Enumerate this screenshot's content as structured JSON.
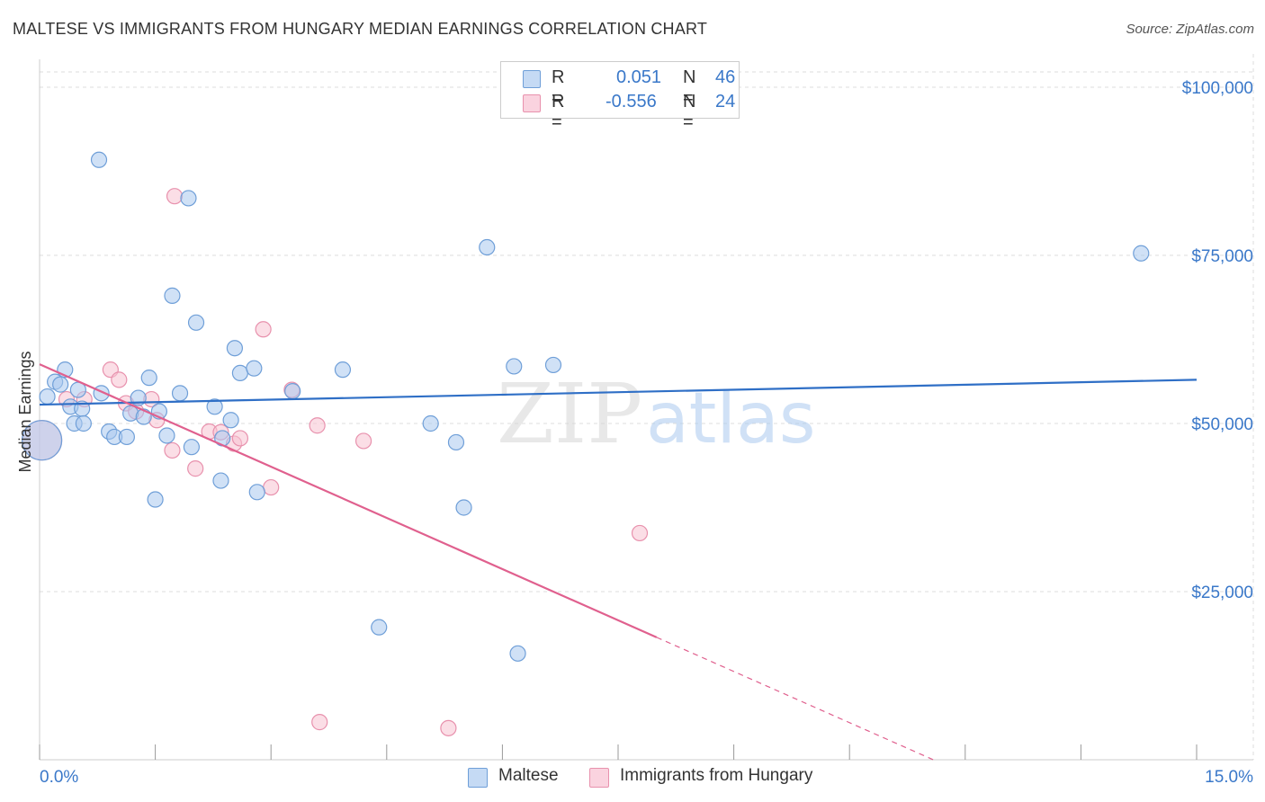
{
  "title": "MALTESE VS IMMIGRANTS FROM HUNGARY MEDIAN EARNINGS CORRELATION CHART",
  "source": "Source: ZipAtlas.com",
  "watermark": {
    "zip": "ZIP",
    "atlas": "atlas"
  },
  "legend_top": {
    "r_label": "R =",
    "n_label": "N =",
    "rows": [
      {
        "series": "Maltese",
        "r": "0.051",
        "n": "46"
      },
      {
        "series": "Immigrants from Hungary",
        "r": "-0.556",
        "n": "24"
      }
    ]
  },
  "legend_bottom": [
    "Maltese",
    "Immigrants from Hungary"
  ],
  "colors": {
    "blue_fill": "#a9c9ef",
    "blue_stroke": "#6f9fd8",
    "blue_line": "#2f6fc6",
    "pink_fill": "#f7c3d2",
    "pink_stroke": "#e891ad",
    "pink_line": "#e0608e",
    "axis_text": "#3a78c9",
    "grid": "#dddddd"
  },
  "chart_data": {
    "type": "scatter",
    "title": "MALTESE VS IMMIGRANTS FROM HUNGARY MEDIAN EARNINGS CORRELATION CHART",
    "xlabel": "",
    "ylabel": "Median Earnings",
    "xlim": [
      0,
      15
    ],
    "ylim": [
      0,
      105000
    ],
    "x_tick_labels": [
      "0.0%",
      "15.0%"
    ],
    "y_ticks": [
      {
        "value": 25000,
        "label": "$25,000"
      },
      {
        "value": 50000,
        "label": "$50,000"
      },
      {
        "value": 75000,
        "label": "$75,000"
      },
      {
        "value": 100000,
        "label": "$100,000"
      }
    ],
    "grid": true,
    "legend_position": "top-center",
    "series": [
      {
        "name": "Maltese",
        "r": 0.051,
        "n": 46,
        "trend": {
          "x": [
            0,
            15
          ],
          "y": [
            52800,
            56500
          ],
          "style": "solid"
        },
        "points": [
          [
            0.03,
            47500,
            "large"
          ],
          [
            0.1,
            54000
          ],
          [
            0.2,
            56200
          ],
          [
            0.27,
            55800
          ],
          [
            0.33,
            58000
          ],
          [
            0.4,
            52500
          ],
          [
            0.45,
            50000
          ],
          [
            0.5,
            55000
          ],
          [
            0.55,
            52200
          ],
          [
            0.57,
            50000
          ],
          [
            0.77,
            89200
          ],
          [
            0.8,
            54500
          ],
          [
            0.9,
            48800
          ],
          [
            0.97,
            48000
          ],
          [
            1.13,
            48000
          ],
          [
            1.18,
            51500
          ],
          [
            1.28,
            53800
          ],
          [
            1.35,
            51000
          ],
          [
            1.42,
            56800
          ],
          [
            1.5,
            38700
          ],
          [
            1.55,
            51800
          ],
          [
            1.65,
            48200
          ],
          [
            1.72,
            69000
          ],
          [
            1.82,
            54500
          ],
          [
            1.93,
            83500
          ],
          [
            1.97,
            46500
          ],
          [
            2.03,
            65000
          ],
          [
            2.27,
            52500
          ],
          [
            2.35,
            41500
          ],
          [
            2.37,
            47800
          ],
          [
            2.48,
            50500
          ],
          [
            2.53,
            61200
          ],
          [
            2.6,
            57500
          ],
          [
            2.78,
            58200
          ],
          [
            2.82,
            39800
          ],
          [
            3.28,
            54800
          ],
          [
            3.93,
            58000
          ],
          [
            4.4,
            19700
          ],
          [
            5.07,
            50000
          ],
          [
            5.4,
            47200
          ],
          [
            5.5,
            37500
          ],
          [
            5.8,
            76200
          ],
          [
            6.15,
            58500
          ],
          [
            6.2,
            15800
          ],
          [
            6.66,
            58700
          ],
          [
            14.28,
            75300
          ]
        ]
      },
      {
        "name": "Immigrants from Hungary",
        "r": -0.556,
        "n": 24,
        "trend": {
          "x": [
            0,
            8.0
          ],
          "y": [
            58800,
            18200
          ],
          "style": "solid",
          "extended_to_x": 11.6,
          "extended_style": "dashed"
        },
        "points": [
          [
            0.03,
            47500,
            "large"
          ],
          [
            0.35,
            53600
          ],
          [
            0.58,
            53600
          ],
          [
            0.92,
            58000
          ],
          [
            1.03,
            56500
          ],
          [
            1.12,
            53000
          ],
          [
            1.25,
            51800
          ],
          [
            1.45,
            53600
          ],
          [
            1.52,
            50500
          ],
          [
            1.72,
            46000
          ],
          [
            1.75,
            83800
          ],
          [
            2.02,
            43300
          ],
          [
            2.2,
            48800
          ],
          [
            2.35,
            48700
          ],
          [
            2.52,
            47000
          ],
          [
            2.6,
            47800
          ],
          [
            2.9,
            64000
          ],
          [
            3.0,
            40500
          ],
          [
            3.27,
            55000
          ],
          [
            3.6,
            49700
          ],
          [
            3.63,
            5600
          ],
          [
            4.2,
            47400
          ],
          [
            5.3,
            4700
          ],
          [
            7.78,
            33700
          ]
        ]
      }
    ]
  }
}
